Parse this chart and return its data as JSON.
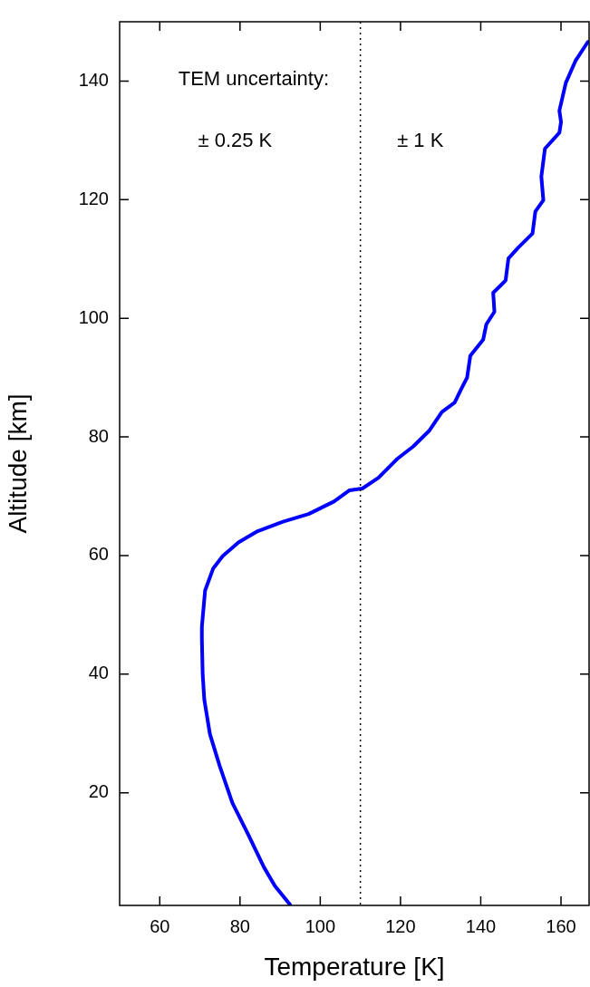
{
  "chart_data": {
    "type": "line",
    "xlabel": "Temperature [K]",
    "ylabel": "Altitude [km]",
    "xlim": [
      50,
      167
    ],
    "xticks": [
      60,
      80,
      100,
      120,
      140,
      160
    ],
    "ylim": [
      1,
      150
    ],
    "yticks": [
      20,
      40,
      60,
      80,
      100,
      120,
      140
    ],
    "grid": false,
    "legend": false,
    "marker": "none",
    "line_style": "solid",
    "annotations": [
      "TEM uncertainty:",
      "± 0.25 K",
      "± 1 K"
    ],
    "ref_lines": [
      {
        "axis": "x",
        "value": 110,
        "line_style": "dotted",
        "color": "#000000"
      }
    ],
    "series": [
      {
        "color": "#0000ff",
        "x": [
          92.5,
          88.7,
          86.0,
          82.0,
          78.1,
          74.9,
          72.5,
          71.1,
          70.7,
          70.5,
          70.5,
          71.3,
          73.3,
          75.7,
          79.6,
          84.4,
          90.7,
          97.1,
          103.4,
          107.3,
          110.5,
          114.5,
          119.2,
          123.2,
          127.1,
          130.3,
          133.5,
          135.0,
          136.6,
          137.4,
          140.6,
          141.4,
          143.4,
          143.1,
          144.6,
          146.2,
          146.9,
          149.3,
          152.9,
          153.6,
          155.6,
          155.1,
          156.0,
          159.6,
          160.0,
          159.6,
          161.2,
          163.6,
          166.7
        ],
        "values": [
          1.1,
          4.3,
          7.4,
          13.0,
          18.3,
          24.6,
          29.9,
          35.7,
          40.0,
          45.8,
          48.0,
          54.1,
          57.8,
          59.9,
          62.2,
          64.1,
          65.7,
          67.0,
          69.1,
          71.0,
          71.3,
          73.1,
          76.3,
          78.4,
          81.0,
          84.2,
          85.8,
          87.9,
          90.0,
          93.7,
          96.4,
          99.0,
          101.1,
          104.3,
          105.3,
          106.4,
          110.1,
          111.9,
          114.3,
          118.0,
          119.9,
          123.9,
          128.6,
          131.3,
          133.1,
          135.0,
          139.7,
          143.4,
          146.6
        ]
      }
    ]
  }
}
